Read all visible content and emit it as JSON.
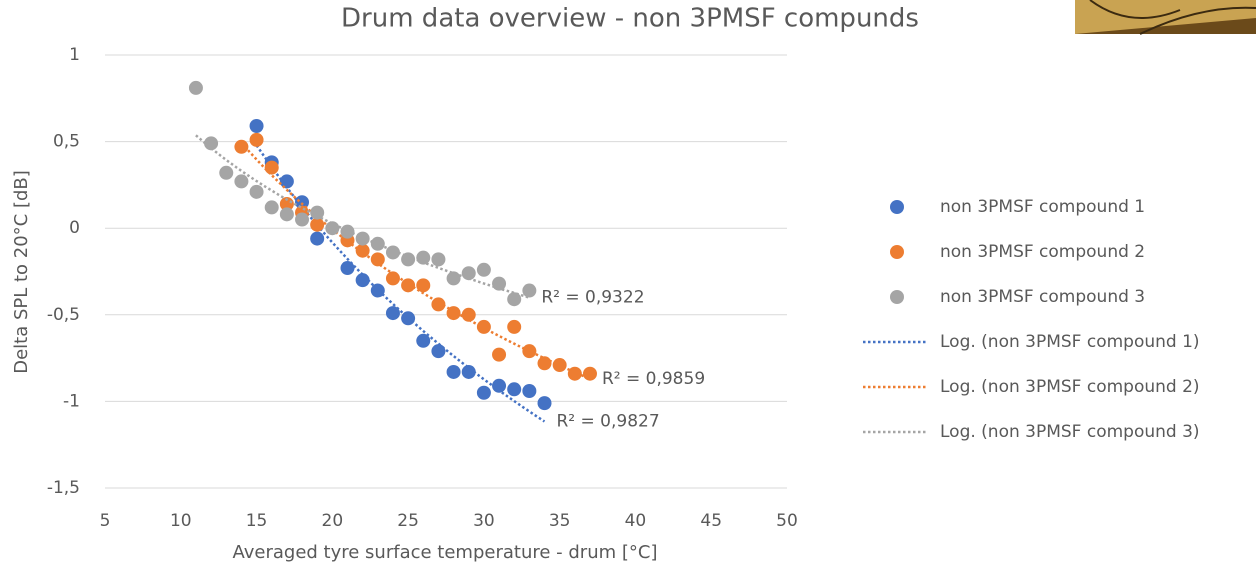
{
  "chart_data": {
    "type": "scatter",
    "title": "Drum data overview - non 3PMSF compunds",
    "x_label": "Averaged tyre surface temperature - drum [°C]",
    "y_label": "Delta SPL to 20°C [dB]",
    "xlim": [
      5,
      50
    ],
    "xticks": [
      5,
      10,
      15,
      20,
      25,
      30,
      35,
      40,
      45,
      50
    ],
    "ylim": [
      -1.5,
      1
    ],
    "yticks": [
      {
        "value": -1.5,
        "label": "-1,5"
      },
      -1,
      {
        "value": -0.5,
        "label": "-0,5"
      },
      0,
      {
        "value": 0.5,
        "label": "0,5"
      },
      1
    ],
    "grid": true,
    "legend": "right",
    "series": [
      {
        "name": "non 3PMSF compound 1",
        "color": "#4472c4",
        "x": [
          15,
          16,
          17,
          18,
          19,
          21,
          22,
          23,
          24,
          25,
          26,
          27,
          28,
          29,
          30,
          31,
          32,
          33,
          34
        ],
        "values": [
          0.59,
          0.38,
          0.27,
          0.15,
          -0.06,
          -0.23,
          -0.3,
          -0.36,
          -0.49,
          -0.52,
          -0.65,
          -0.71,
          -0.83,
          -0.83,
          -0.95,
          -0.91,
          -0.93,
          -0.94,
          -1.01
        ],
        "trendline": {
          "name": "Log. (non 3PMSF compound 1)",
          "r2": 0.9827,
          "r2_label": "R² = 0,9827"
        }
      },
      {
        "name": "non 3PMSF compound 2",
        "color": "#ed7d31",
        "x": [
          14,
          15,
          16,
          17,
          18,
          19,
          21,
          22,
          23,
          24,
          25,
          26,
          27,
          28,
          29,
          30,
          31,
          32,
          33,
          34,
          35,
          36,
          37
        ],
        "values": [
          0.47,
          0.51,
          0.35,
          0.14,
          0.09,
          0.02,
          -0.07,
          -0.13,
          -0.18,
          -0.29,
          -0.33,
          -0.33,
          -0.44,
          -0.49,
          -0.5,
          -0.57,
          -0.73,
          -0.57,
          -0.71,
          -0.78,
          -0.79,
          -0.84,
          -0.84
        ],
        "trendline": {
          "name": "Log. (non 3PMSF compound 2)",
          "r2": 0.9859,
          "r2_label": "R² = 0,9859"
        }
      },
      {
        "name": "non 3PMSF compound 3",
        "color": "#a5a5a5",
        "x": [
          11,
          12,
          13,
          14,
          15,
          16,
          17,
          18,
          19,
          20,
          21,
          22,
          23,
          24,
          25,
          26,
          27,
          28,
          29,
          30,
          31,
          32,
          33
        ],
        "values": [
          0.81,
          0.49,
          0.32,
          0.27,
          0.21,
          0.12,
          0.08,
          0.05,
          0.09,
          0.0,
          -0.02,
          -0.06,
          -0.09,
          -0.14,
          -0.18,
          -0.17,
          -0.18,
          -0.29,
          -0.26,
          -0.24,
          -0.32,
          -0.41,
          -0.36
        ],
        "trendline": {
          "name": "Log. (non 3PMSF compound 3)",
          "r2": 0.9322,
          "r2_label": "R² = 0,9322"
        }
      }
    ]
  }
}
